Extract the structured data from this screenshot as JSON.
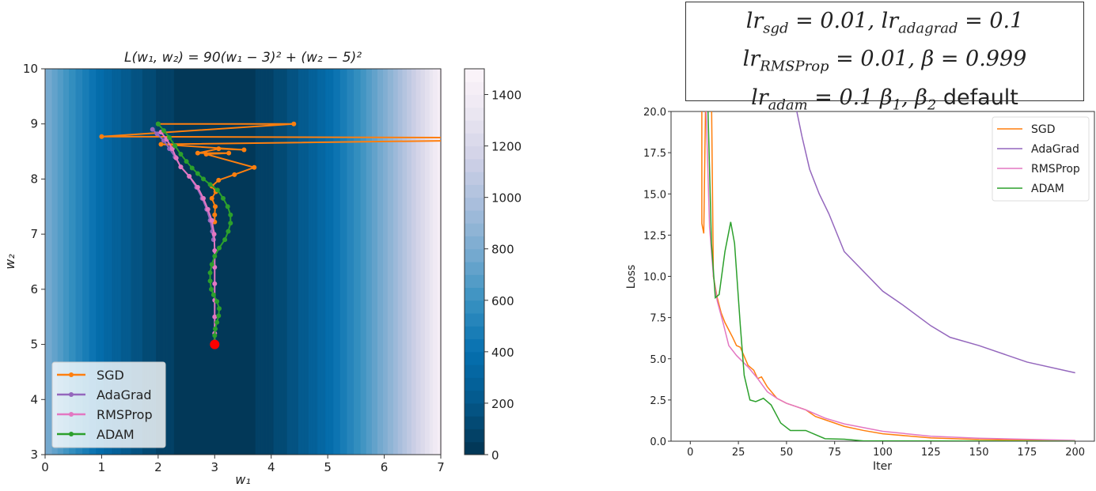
{
  "chart_data": [
    {
      "type": "heatmap",
      "title": "L(w₁, w₂) = 90(w₁ − 3)² + (w₂ − 5)²",
      "xlabel": "w₁",
      "ylabel": "w₂",
      "xlim": [
        0,
        7
      ],
      "ylim": [
        3,
        10
      ],
      "xticks": [
        "0",
        "1",
        "2",
        "3",
        "4",
        "5",
        "6",
        "7"
      ],
      "yticks": [
        "3",
        "4",
        "5",
        "6",
        "7",
        "8",
        "9",
        "10"
      ],
      "colorbar": {
        "range": [
          0,
          1500
        ],
        "ticks": [
          "0",
          "200",
          "400",
          "600",
          "800",
          "1000",
          "1200",
          "1400"
        ],
        "colors": [
          "#023858",
          "#045a8d",
          "#0570b0",
          "#3690c0",
          "#74a9cf",
          "#a6bddb",
          "#d0d1e6",
          "#ece7f2",
          "#fff7fb"
        ]
      },
      "minimum": {
        "w1": 3,
        "w2": 5,
        "color": "#ff0000"
      },
      "legend_position": "lower-left",
      "series": [
        {
          "name": "SGD",
          "color": "#ff7f0e",
          "points": [
            [
              2,
              9
            ],
            [
              4.4,
              9
            ],
            [
              1,
              8.77
            ],
            [
              7.5,
              8.75
            ],
            [
              7.5,
              8.7
            ],
            [
              2.05,
              8.63
            ],
            [
              3.52,
              8.53
            ],
            [
              3.07,
              8.55
            ],
            [
              2.7,
              8.47
            ],
            [
              3.25,
              8.47
            ],
            [
              2.85,
              8.45
            ],
            [
              3.7,
              8.21
            ],
            [
              3.35,
              8.08
            ],
            [
              3.07,
              7.98
            ],
            [
              2.95,
              7.87
            ],
            [
              3.02,
              7.77
            ],
            [
              2.95,
              7.65
            ],
            [
              3.01,
              7.5
            ],
            [
              3,
              7.35
            ],
            [
              3,
              7.22
            ]
          ]
        },
        {
          "name": "AdaGrad",
          "color": "#9467bd",
          "points": [
            [
              1.9,
              8.9
            ],
            [
              1.98,
              8.82
            ],
            [
              2.1,
              8.7
            ],
            [
              2.2,
              8.55
            ],
            [
              2.3,
              8.4
            ],
            [
              2.4,
              8.22
            ],
            [
              2.55,
              8.05
            ],
            [
              2.68,
              7.85
            ],
            [
              2.78,
              7.65
            ],
            [
              2.86,
              7.45
            ],
            [
              2.92,
              7.25
            ],
            [
              2.96,
              7.05
            ],
            [
              2.98,
              6.9
            ]
          ]
        },
        {
          "name": "RMSProp",
          "color": "#e377c2",
          "points": [
            [
              2.05,
              8.85
            ],
            [
              2.15,
              8.72
            ],
            [
              2.25,
              8.55
            ],
            [
              2.32,
              8.38
            ],
            [
              2.4,
              8.22
            ],
            [
              2.55,
              8.05
            ],
            [
              2.7,
              7.85
            ],
            [
              2.8,
              7.65
            ],
            [
              2.88,
              7.45
            ],
            [
              2.95,
              7.25
            ],
            [
              2.99,
              7
            ],
            [
              3,
              6.7
            ],
            [
              3,
              6.4
            ],
            [
              3,
              6.1
            ],
            [
              3,
              5.8
            ],
            [
              3,
              5.5
            ],
            [
              3,
              5.2
            ],
            [
              3,
              5.05
            ]
          ]
        },
        {
          "name": "ADAM",
          "color": "#2ca02c",
          "points": [
            [
              2,
              9
            ],
            [
              2.1,
              8.88
            ],
            [
              2.2,
              8.75
            ],
            [
              2.3,
              8.6
            ],
            [
              2.4,
              8.45
            ],
            [
              2.5,
              8.32
            ],
            [
              2.6,
              8.2
            ],
            [
              2.7,
              8.1
            ],
            [
              2.8,
              8
            ],
            [
              2.92,
              7.9
            ],
            [
              3.05,
              7.8
            ],
            [
              3.15,
              7.65
            ],
            [
              3.23,
              7.5
            ],
            [
              3.28,
              7.35
            ],
            [
              3.28,
              7.2
            ],
            [
              3.24,
              7.05
            ],
            [
              3.18,
              6.9
            ],
            [
              3.08,
              6.75
            ],
            [
              3.0,
              6.6
            ],
            [
              2.95,
              6.45
            ],
            [
              2.92,
              6.3
            ],
            [
              2.92,
              6.15
            ],
            [
              2.94,
              6.0
            ],
            [
              2.98,
              5.9
            ],
            [
              3.04,
              5.78
            ],
            [
              3.08,
              5.65
            ],
            [
              3.07,
              5.52
            ],
            [
              3.04,
              5.4
            ],
            [
              3.01,
              5.28
            ],
            [
              3,
              5.16
            ],
            [
              3,
              5.05
            ]
          ]
        }
      ]
    },
    {
      "type": "line",
      "xlabel": "Iter",
      "ylabel": "Loss",
      "xlim": [
        -10,
        210
      ],
      "ylim": [
        0,
        20
      ],
      "xticks": [
        "0",
        "25",
        "50",
        "75",
        "100",
        "125",
        "150",
        "175",
        "200"
      ],
      "yticks": [
        "0.0",
        "2.5",
        "5.0",
        "7.5",
        "10.0",
        "12.5",
        "15.0",
        "17.5",
        "20.0"
      ],
      "legend_position": "top-right",
      "series": [
        {
          "name": "SGD",
          "color": "#ff7f0e",
          "points": [
            [
              6,
              21
            ],
            [
              6,
              13.2
            ],
            [
              7,
              12.6
            ],
            [
              8,
              21
            ],
            [
              11,
              21
            ],
            [
              12,
              10
            ],
            [
              14,
              8.7
            ],
            [
              16,
              7.8
            ],
            [
              18,
              7.2
            ],
            [
              22,
              6.3
            ],
            [
              24,
              5.8
            ],
            [
              26,
              5.7
            ],
            [
              30,
              4.6
            ],
            [
              33,
              4.3
            ],
            [
              35,
              3.8
            ],
            [
              37,
              3.9
            ],
            [
              40,
              3.3
            ],
            [
              45,
              2.6
            ],
            [
              50,
              2.3
            ],
            [
              55,
              2.1
            ],
            [
              60,
              1.9
            ],
            [
              65,
              1.5
            ],
            [
              70,
              1.3
            ],
            [
              80,
              0.9
            ],
            [
              90,
              0.65
            ],
            [
              100,
              0.45
            ],
            [
              125,
              0.2
            ],
            [
              150,
              0.1
            ],
            [
              200,
              0.03
            ]
          ]
        },
        {
          "name": "AdaGrad",
          "color": "#9467bd",
          "points": [
            [
              55,
              20.2
            ],
            [
              58,
              18.5
            ],
            [
              62,
              16.5
            ],
            [
              67,
              15
            ],
            [
              72,
              13.8
            ],
            [
              80,
              11.5
            ],
            [
              90,
              10.3
            ],
            [
              100,
              9.1
            ],
            [
              110,
              8.3
            ],
            [
              125,
              7
            ],
            [
              135,
              6.3
            ],
            [
              150,
              5.8
            ],
            [
              175,
              4.8
            ],
            [
              200,
              4.15
            ]
          ]
        },
        {
          "name": "RMSProp",
          "color": "#e377c2",
          "points": [
            [
              8,
              21
            ],
            [
              10,
              13
            ],
            [
              12,
              10
            ],
            [
              14,
              8.5
            ],
            [
              17,
              7.2
            ],
            [
              20,
              5.8
            ],
            [
              24,
              5.2
            ],
            [
              30,
              4.5
            ],
            [
              35,
              3.8
            ],
            [
              40,
              3
            ],
            [
              45,
              2.6
            ],
            [
              50,
              2.3
            ],
            [
              60,
              1.9
            ],
            [
              70,
              1.4
            ],
            [
              80,
              1.05
            ],
            [
              100,
              0.6
            ],
            [
              125,
              0.3
            ],
            [
              150,
              0.18
            ],
            [
              200,
              0.05
            ]
          ]
        },
        {
          "name": "ADAM",
          "color": "#2ca02c",
          "points": [
            [
              9,
              21
            ],
            [
              11,
              12
            ],
            [
              13,
              8.7
            ],
            [
              15,
              8.9
            ],
            [
              18,
              11.5
            ],
            [
              21,
              13.3
            ],
            [
              23,
              12
            ],
            [
              26,
              7
            ],
            [
              28,
              4
            ],
            [
              31,
              2.5
            ],
            [
              34,
              2.4
            ],
            [
              38,
              2.6
            ],
            [
              42,
              2.2
            ],
            [
              47,
              1.1
            ],
            [
              52,
              0.65
            ],
            [
              60,
              0.65
            ],
            [
              65,
              0.4
            ],
            [
              70,
              0.15
            ],
            [
              80,
              0.12
            ],
            [
              90,
              0.02
            ],
            [
              200,
              0
            ]
          ]
        }
      ]
    }
  ],
  "hyperparams": [
    [
      {
        "t": "lr"
      },
      {
        "sub": "sgd"
      },
      {
        "t": " = 0.01, lr"
      },
      {
        "sub": "adagrad"
      },
      {
        "t": " = 0.1"
      }
    ],
    [
      {
        "t": "lr"
      },
      {
        "sub": "RMSProp"
      },
      {
        "t": " = 0.01, β = 0.999"
      }
    ],
    [
      {
        "t": "lr"
      },
      {
        "sub": "adam"
      },
      {
        "t": " = 0.1 β"
      },
      {
        "sub": "1"
      },
      {
        "t": ", β"
      },
      {
        "sub": "2"
      },
      {
        "up": " default"
      }
    ]
  ]
}
